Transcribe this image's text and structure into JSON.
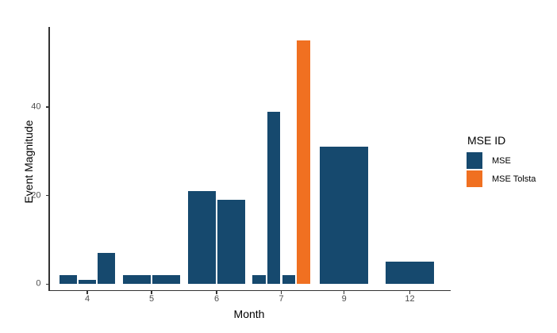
{
  "chart_data": {
    "type": "bar",
    "title": "",
    "xlabel": "Month",
    "ylabel": "Event Magnitude",
    "x_tick_labels": [
      "4",
      "5",
      "6",
      "7",
      "9",
      "12"
    ],
    "y_tick_values": [
      0,
      20,
      40
    ],
    "y_tick_labels": [
      "0",
      "20",
      "40"
    ],
    "ylim": [
      0,
      55
    ],
    "grid": "off",
    "legend_position": "right",
    "legend": {
      "title": "MSE ID",
      "entries": [
        {
          "label": "MSE",
          "color": "#16496E"
        },
        {
          "label": "MSE Tolsta",
          "color": "#F07021"
        }
      ]
    },
    "series_colors": {
      "MSE": "#16496E",
      "MSE Tolsta": "#F07021"
    },
    "bars": [
      {
        "month": "4",
        "value": 2,
        "series": "MSE"
      },
      {
        "month": "4",
        "value": 1,
        "series": "MSE"
      },
      {
        "month": "4",
        "value": 7,
        "series": "MSE"
      },
      {
        "month": "5",
        "value": 2,
        "series": "MSE"
      },
      {
        "month": "5",
        "value": 2,
        "series": "MSE"
      },
      {
        "month": "6",
        "value": 21,
        "series": "MSE"
      },
      {
        "month": "6",
        "value": 19,
        "series": "MSE"
      },
      {
        "month": "7",
        "value": 2,
        "series": "MSE"
      },
      {
        "month": "7",
        "value": 39,
        "series": "MSE"
      },
      {
        "month": "7",
        "value": 2,
        "series": "MSE"
      },
      {
        "month": "7",
        "value": 55,
        "series": "MSE Tolsta"
      },
      {
        "month": "9",
        "value": 31,
        "series": "MSE"
      },
      {
        "month": "12",
        "value": 5,
        "series": "MSE"
      }
    ],
    "axis": {
      "line_color": "#333333",
      "tick_color": "#333333",
      "tick_label_color": "#4D4D4D"
    }
  }
}
